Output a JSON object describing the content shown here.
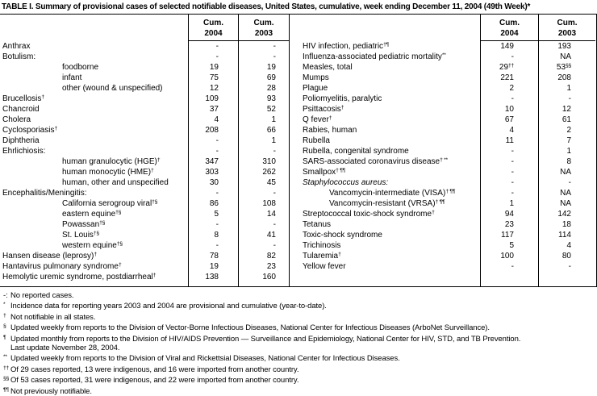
{
  "title": "TABLE I. Summary of provisional cases of selected notifiable diseases, United States, cumulative, week ending December 11, 2004 (49th Week)*",
  "header": {
    "cum": "Cum.",
    "y2004": "2004",
    "y2003": "2003"
  },
  "left_table": {
    "rows": [
      {
        "label": "Anthrax",
        "v2004": "-",
        "v2003": "-"
      },
      {
        "label": "Botulism:",
        "v2004": "-",
        "v2003": "-"
      },
      {
        "label": "foodborne",
        "indent": true,
        "v2004": "19",
        "v2003": "19"
      },
      {
        "label": "infant",
        "indent": true,
        "v2004": "75",
        "v2003": "69"
      },
      {
        "label": "other (wound & unspecified)",
        "indent": true,
        "v2004": "12",
        "v2003": "28"
      },
      {
        "label": "Brucellosis",
        "label_sup": "†",
        "v2004": "109",
        "v2003": "93"
      },
      {
        "label": "Chancroid",
        "v2004": "37",
        "v2003": "52"
      },
      {
        "label": "Cholera",
        "v2004": "4",
        "v2003": "1"
      },
      {
        "label": "Cyclosporiasis",
        "label_sup": "†",
        "v2004": "208",
        "v2003": "66"
      },
      {
        "label": "Diphtheria",
        "v2004": "-",
        "v2003": "1"
      },
      {
        "label": "Ehrlichiosis:",
        "v2004": "-",
        "v2003": "-"
      },
      {
        "label": "human granulocytic (HGE)",
        "label_sup": "†",
        "indent": true,
        "v2004": "347",
        "v2003": "310"
      },
      {
        "label": "human monocytic (HME)",
        "label_sup": "†",
        "indent": true,
        "v2004": "303",
        "v2003": "262"
      },
      {
        "label": "human, other and unspecified",
        "indent": true,
        "v2004": "30",
        "v2003": "45"
      },
      {
        "label": "Encephalitis/Meningitis:",
        "v2004": "-",
        "v2003": "-"
      },
      {
        "label": "California serogroup viral",
        "label_sup": "†§",
        "indent": true,
        "v2004": "86",
        "v2003": "108"
      },
      {
        "label": "eastern equine",
        "label_sup": "†§",
        "indent": true,
        "v2004": "5",
        "v2003": "14"
      },
      {
        "label": "Powassan",
        "label_sup": "†§",
        "indent": true,
        "v2004": "-",
        "v2003": "-"
      },
      {
        "label": "St. Louis",
        "label_sup": "†§",
        "indent": true,
        "v2004": "8",
        "v2003": "41"
      },
      {
        "label": "western equine",
        "label_sup": "†§",
        "indent": true,
        "v2004": "-",
        "v2003": "-"
      },
      {
        "label": "Hansen disease (leprosy)",
        "label_sup": "†",
        "v2004": "78",
        "v2003": "82"
      },
      {
        "label": "Hantavirus pulmonary syndrome",
        "label_sup": "†",
        "v2004": "19",
        "v2003": "23"
      },
      {
        "label": "Hemolytic uremic syndrome, postdiarrheal",
        "label_sup": "†",
        "v2004": "138",
        "v2003": "160"
      }
    ]
  },
  "right_table": {
    "rows": [
      {
        "label": "HIV infection, pediatric",
        "label_sup": "†¶",
        "v2004": "149",
        "v2003": "193"
      },
      {
        "label": "Influenza-associated pediatric mortality",
        "label_sup": "**",
        "v2004": "-",
        "v2003": "NA"
      },
      {
        "label": "Measles, total",
        "v2004": "29",
        "v2004_sup": "††",
        "v2003": "53",
        "v2003_sup": "§§"
      },
      {
        "label": "Mumps",
        "v2004": "221",
        "v2003": "208"
      },
      {
        "label": "Plague",
        "v2004": "2",
        "v2003": "1"
      },
      {
        "label": "Poliomyelitis, paralytic",
        "v2004": "-",
        "v2003": "-"
      },
      {
        "label": "Psittacosis",
        "label_sup": "†",
        "v2004": "10",
        "v2003": "12"
      },
      {
        "label": "Q fever",
        "label_sup": "†",
        "v2004": "67",
        "v2003": "61"
      },
      {
        "label": "Rabies, human",
        "v2004": "4",
        "v2003": "2"
      },
      {
        "label": "Rubella",
        "v2004": "11",
        "v2003": "7"
      },
      {
        "label": "Rubella, congenital syndrome",
        "v2004": "-",
        "v2003": "1"
      },
      {
        "label": "SARS-associated coronavirus disease",
        "label_sup": "† **",
        "v2004": "-",
        "v2003": "8"
      },
      {
        "label": "Smallpox",
        "label_sup": "† ¶¶",
        "v2004": "-",
        "v2003": "NA"
      },
      {
        "label": "Staphylococcus aureus:",
        "italic": true,
        "v2004": "-",
        "v2003": "-"
      },
      {
        "label": "Vancomycin-intermediate (VISA)",
        "label_sup": "† ¶¶",
        "indent": true,
        "v2004": "-",
        "v2003": "NA"
      },
      {
        "label": "Vancomycin-resistant (VRSA)",
        "label_sup": "† ¶¶",
        "indent": true,
        "v2004": "1",
        "v2003": "NA"
      },
      {
        "label": "Streptococcal toxic-shock syndrome",
        "label_sup": "†",
        "v2004": "94",
        "v2003": "142"
      },
      {
        "label": "Tetanus",
        "v2004": "23",
        "v2003": "18"
      },
      {
        "label": "Toxic-shock syndrome",
        "v2004": "117",
        "v2003": "114"
      },
      {
        "label": "Trichinosis",
        "v2004": "5",
        "v2003": "4"
      },
      {
        "label": "Tularemia",
        "label_sup": "†",
        "v2004": "100",
        "v2003": "80"
      },
      {
        "label": "Yellow fever",
        "v2004": "-",
        "v2003": "-"
      },
      {
        "label": "",
        "v2004": "",
        "v2003": ""
      }
    ]
  },
  "footnotes": [
    {
      "marker": "-:",
      "flat": true,
      "text": "No reported cases."
    },
    {
      "marker": "*",
      "text": "Incidence data for reporting years 2003 and 2004 are provisional and cumulative (year-to-date)."
    },
    {
      "marker": "†",
      "text": "Not notifiable in all states."
    },
    {
      "marker": "§",
      "text": "Updated weekly from reports to the Division of Vector-Borne Infectious Diseases, National Center for Infectious Diseases (ArboNet Surveillance)."
    },
    {
      "marker": "¶",
      "text": "Updated monthly from reports to the Division of HIV/AIDS Prevention — Surveillance and Epidemiology, National Center for HIV, STD, and TB Prevention."
    },
    {
      "marker": "",
      "text": "Last update November 28, 2004."
    },
    {
      "marker": "**",
      "text": "Updated weekly from reports to the Division of Viral and Rickettsial Diseases, National Center for Infectious Diseases."
    },
    {
      "marker": "††",
      "text": "Of 29 cases reported, 13 were indigenous, and 16 were imported from another country."
    },
    {
      "marker": "§§",
      "text": "Of 53 cases reported, 31 were indigenous, and 22 were imported from another country."
    },
    {
      "marker": "¶¶",
      "text": "Not previously notifiable."
    }
  ]
}
